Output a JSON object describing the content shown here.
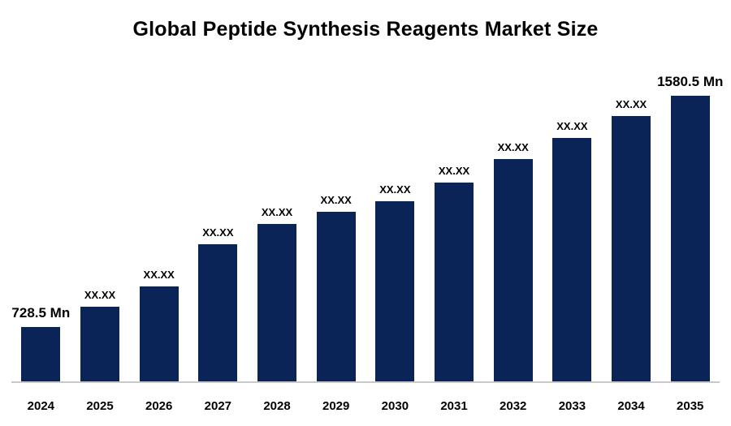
{
  "chart_data": {
    "type": "bar",
    "title": "Global Peptide Synthesis Reagents Market Size",
    "categories": [
      "2024",
      "2025",
      "2026",
      "2027",
      "2028",
      "2029",
      "2030",
      "2031",
      "2032",
      "2033",
      "2034",
      "2035"
    ],
    "values": [
      728.5,
      803.2,
      878.0,
      1033.4,
      1108.1,
      1152.9,
      1191.8,
      1260.5,
      1347.2,
      1424.9,
      1505.6,
      1580.5
    ],
    "bar_labels": [
      "728.5 Mn",
      "XX.XX",
      "XX.XX",
      "XX.XX",
      "XX.XX",
      "XX.XX",
      "XX.XX",
      "XX.XX",
      "XX.XX",
      "XX.XX",
      "XX.XX",
      "1580.5 Mn"
    ],
    "unit": "Mn",
    "first_value_label": "728.5 Mn",
    "last_value_label": "1580.5 Mn",
    "bar_color": "#0A2458",
    "axis_line_color": "#c9c9c9",
    "xlabel": "",
    "ylabel": "",
    "legend": "none",
    "grid": false
  }
}
